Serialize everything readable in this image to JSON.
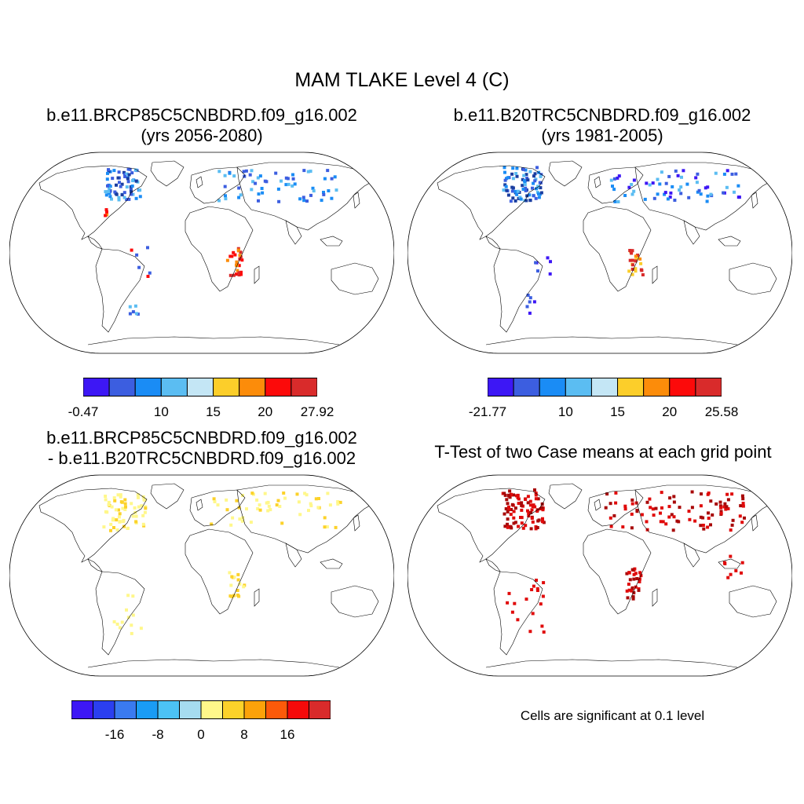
{
  "figure": {
    "main_title": "MAM TLAKE Level 4 (C)",
    "panels": {
      "top_left": {
        "title_line1": "b.e11.BRCP85C5CNBDRD.f09_g16.002",
        "title_line2": "(yrs 2056-2080)",
        "colorbar": {
          "colors": [
            "#3d17f5",
            "#3c5ee0",
            "#1a8cf5",
            "#5bbdf2",
            "#c4e6f5",
            "#fcce2a",
            "#fc8c0a",
            "#fc0a0a",
            "#d92b2b"
          ],
          "labels": [
            "-0.47",
            "10",
            "15",
            "20",
            "27.92"
          ],
          "label_boundaries": [
            0,
            3,
            5,
            7,
            9
          ]
        }
      },
      "top_right": {
        "title_line1": "b.e11.B20TRC5CNBDRD.f09_g16.002",
        "title_line2": "(yrs 1981-2005)",
        "colorbar": {
          "colors": [
            "#3d17f5",
            "#3c5ee0",
            "#1a8cf5",
            "#5bbdf2",
            "#c4e6f5",
            "#fcce2a",
            "#fc8c0a",
            "#fc0a0a",
            "#d92b2b"
          ],
          "labels": [
            "-21.77",
            "10",
            "15",
            "20",
            "25.58"
          ],
          "label_boundaries": [
            0,
            3,
            5,
            7,
            9
          ]
        }
      },
      "bottom_left": {
        "title_line1": "b.e11.BRCP85C5CNBDRD.f09_g16.002",
        "title_line2": "- b.e11.B20TRC5CNBDRD.f09_g16.002",
        "colorbar": {
          "colors": [
            "#3d17f5",
            "#2b3ff0",
            "#3a7af0",
            "#1a9cf5",
            "#4cc2f5",
            "#a6dcf0",
            "#fff78a",
            "#fcd22a",
            "#fca20a",
            "#fc5a0a",
            "#f50a0a",
            "#d92b2b"
          ],
          "labels": [
            "-16",
            "-8",
            "0",
            "8",
            "16"
          ],
          "label_boundaries": [
            2,
            4,
            6,
            8,
            10
          ]
        }
      },
      "bottom_right": {
        "title": "T-Test of two Case means at each grid point",
        "note": "Cells are significant at 0.1 level"
      }
    }
  }
}
